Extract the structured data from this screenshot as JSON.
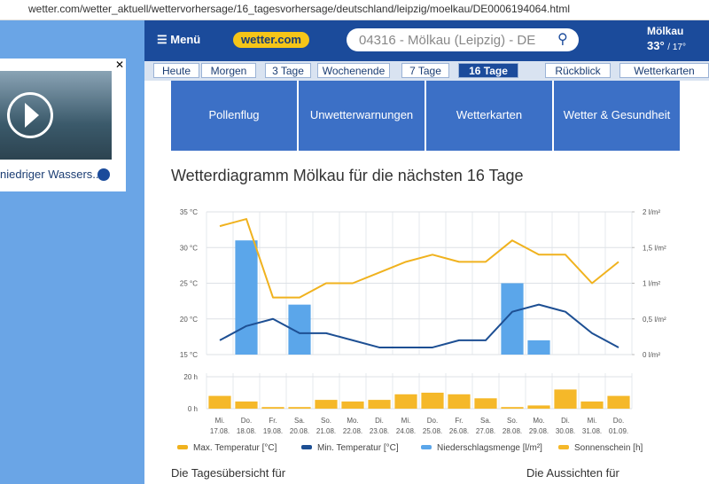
{
  "browser": {
    "url": "wetter.com/wetter_aktuell/wettervorhersage/16_tagesvorhersage/deutschland/leipzig/moelkau/DE0006194064.html"
  },
  "nav": {
    "menu": "Menü",
    "logo": "wetter.com",
    "search": "04316 - Mölkau (Leipzig) - DE",
    "location": "Mölkau",
    "temp_max": "33°",
    "temp_min": "/ 17°"
  },
  "tabs": [
    "Heute",
    "Morgen",
    "3 Tage",
    "Wochenende",
    "7 Tage",
    "16 Tage",
    "Rückblick",
    "Wetterkarten"
  ],
  "tiles": [
    "Pollenflug",
    "Unwetterwarnungen",
    "Wetterkarten",
    "Wetter & Gesundheit"
  ],
  "ad": {
    "caption": "niedriger Wassers..."
  },
  "heading": "Wetterdiagramm Mölkau für die nächsten 16 Tage",
  "footer": [
    "Die Tagesübersicht für",
    "Die Aussichten für"
  ],
  "chart_data": [
    {
      "type": "combo",
      "categories": [
        "Mi.",
        "Do.",
        "Fr.",
        "Sa.",
        "So.",
        "Mo.",
        "Di.",
        "Mi.",
        "Do.",
        "Fr.",
        "Sa.",
        "So.",
        "Mo.",
        "Di.",
        "Mi.",
        "Do."
      ],
      "dates": [
        "17.08.",
        "18.08.",
        "19.08.",
        "20.08.",
        "21.08.",
        "22.08.",
        "23.08.",
        "24.08.",
        "25.08.",
        "26.08.",
        "27.08.",
        "28.08.",
        "29.08.",
        "30.08.",
        "31.08.",
        "01.09."
      ],
      "ylim": [
        15,
        35
      ],
      "yticks": [
        {
          "value": 15,
          "label": "15 °C"
        },
        {
          "value": 20,
          "label": "20 °C"
        },
        {
          "value": 25,
          "label": "25 °C"
        },
        {
          "value": 30,
          "label": "30 °C"
        },
        {
          "value": 35,
          "label": "35 °C"
        }
      ],
      "y2lim": [
        0,
        2
      ],
      "y2ticks": [
        {
          "value": 0,
          "label": "0 l/m²"
        },
        {
          "value": 0.5,
          "label": "0,5 l/m²"
        },
        {
          "value": 1,
          "label": "1 l/m²"
        },
        {
          "value": 1.5,
          "label": "1,5 l/m²"
        },
        {
          "value": 2,
          "label": "2 l/m²"
        }
      ],
      "series": [
        {
          "name": "Max. Temperatur [°C]",
          "kind": "line",
          "color": "#f0b21e",
          "values": [
            33,
            34,
            23,
            23,
            25,
            25,
            26.5,
            28,
            29,
            28,
            28,
            31,
            29,
            29,
            25,
            28
          ]
        },
        {
          "name": "Min. Temperatur [°C]",
          "kind": "line",
          "color": "#1d4f93",
          "values": [
            17,
            19,
            20,
            18,
            18,
            17,
            16,
            16,
            16,
            17,
            17,
            21,
            22,
            21,
            18,
            16
          ]
        },
        {
          "name": "Niederschlagsmenge [l/m²]",
          "kind": "bar",
          "axis": "y2",
          "color": "#5ba6ea",
          "values": [
            0,
            1.6,
            0,
            0.7,
            0,
            0,
            0,
            0,
            0,
            0,
            0,
            1,
            0.2,
            0,
            0,
            0
          ]
        }
      ]
    },
    {
      "type": "bar",
      "ylim": [
        0,
        20
      ],
      "yticks": [
        {
          "value": 0,
          "label": "0 h"
        },
        {
          "value": 20,
          "label": "20 h"
        }
      ],
      "series": [
        {
          "name": "Sonnenschein [h]",
          "color": "#f5b829",
          "values": [
            8,
            4.5,
            1,
            1,
            5.5,
            4.5,
            5.5,
            9,
            10,
            9,
            6.5,
            1,
            2,
            12,
            4.5,
            8
          ]
        }
      ]
    }
  ]
}
